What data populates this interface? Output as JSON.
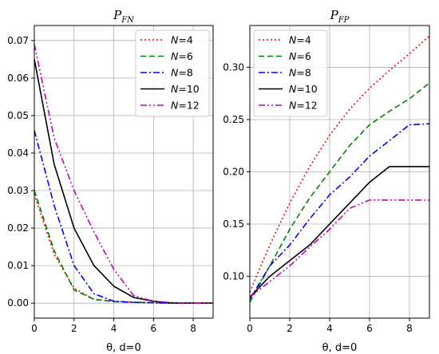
{
  "chart_data": [
    {
      "type": "line",
      "title_main": "P",
      "title_sub": "FN",
      "xlabel": "θ, d=0",
      "xlim": [
        0,
        9
      ],
      "ylim": [
        -0.004,
        0.074
      ],
      "xticks": [
        0,
        2,
        4,
        6,
        8
      ],
      "yticks": [
        0.0,
        0.01,
        0.02,
        0.03,
        0.04,
        0.05,
        0.06,
        0.07
      ],
      "ytick_labels": [
        "0.00",
        "0.01",
        "0.02",
        "0.03",
        "0.04",
        "0.05",
        "0.06",
        "0.07"
      ],
      "grid": true,
      "legend_position": "top-right",
      "x": [
        0,
        1,
        2,
        3,
        4,
        5,
        6,
        7,
        8,
        9
      ],
      "series": [
        {
          "name": "N=4",
          "legend_label": "=4",
          "color": "#ff0000",
          "dash": "2,3",
          "values": [
            0.029,
            0.013,
            0.004,
            0.001,
            0.0005,
            0.0002,
            0.0001,
            0.0,
            0.0,
            0.0
          ]
        },
        {
          "name": "N=6",
          "legend_label": "=6",
          "color": "#008000",
          "dash": "7,4",
          "values": [
            0.03,
            0.014,
            0.0035,
            0.001,
            0.0004,
            0.0002,
            0.0001,
            0.0,
            0.0,
            0.0
          ]
        },
        {
          "name": "N=8",
          "legend_label": "=8",
          "color": "#0000ff",
          "dash": "8,3,2,3",
          "values": [
            0.046,
            0.026,
            0.01,
            0.0025,
            0.0005,
            0.0002,
            0.0001,
            0.0,
            0.0,
            0.0
          ]
        },
        {
          "name": "N=10",
          "legend_label": "=10",
          "color": "#000000",
          "dash": "",
          "values": [
            0.065,
            0.037,
            0.02,
            0.01,
            0.0045,
            0.0015,
            0.0005,
            0.0,
            0.0,
            0.0
          ]
        },
        {
          "name": "N=12",
          "legend_label": "=12",
          "color": "#bf00bf",
          "dash": "8,3,2,3,2,3",
          "values": [
            0.069,
            0.044,
            0.03,
            0.019,
            0.009,
            0.002,
            0.0005,
            0.0001,
            0.0,
            0.0
          ]
        }
      ]
    },
    {
      "type": "line",
      "title_main": "P",
      "title_sub": "FP",
      "xlabel": "θ, d=0",
      "xlim": [
        0,
        9
      ],
      "ylim": [
        0.06,
        0.34
      ],
      "xticks": [
        0,
        2,
        4,
        6,
        8
      ],
      "yticks": [
        0.1,
        0.15,
        0.2,
        0.25,
        0.3
      ],
      "ytick_labels": [
        "0.10",
        "0.15",
        "0.20",
        "0.25",
        "0.30"
      ],
      "grid": true,
      "legend_position": "top-left",
      "x": [
        0,
        1,
        2,
        3,
        4,
        5,
        6,
        7,
        8,
        9
      ],
      "series": [
        {
          "name": "N=4",
          "legend_label": "=4",
          "color": "#ff0000",
          "dash": "2,3",
          "values": [
            0.085,
            0.13,
            0.17,
            0.205,
            0.235,
            0.26,
            0.28,
            0.297,
            0.313,
            0.33
          ]
        },
        {
          "name": "N=6",
          "legend_label": "=6",
          "color": "#008000",
          "dash": "7,4",
          "values": [
            0.075,
            0.11,
            0.145,
            0.175,
            0.2,
            0.225,
            0.245,
            0.258,
            0.27,
            0.285
          ]
        },
        {
          "name": "N=8",
          "legend_label": "=8",
          "color": "#0000ff",
          "dash": "8,3,2,3",
          "values": [
            0.078,
            0.11,
            0.13,
            0.155,
            0.178,
            0.195,
            0.215,
            0.23,
            0.245,
            0.246
          ]
        },
        {
          "name": "N=10",
          "legend_label": "=10",
          "color": "#000000",
          "dash": "",
          "values": [
            0.08,
            0.1,
            0.115,
            0.13,
            0.15,
            0.17,
            0.19,
            0.205,
            0.205,
            0.205
          ]
        },
        {
          "name": "N=12",
          "legend_label": "=12",
          "color": "#bf00bf",
          "dash": "8,3,2,3,2,3",
          "values": [
            0.08,
            0.095,
            0.11,
            0.128,
            0.145,
            0.165,
            0.173,
            0.173,
            0.173,
            0.173
          ]
        }
      ]
    }
  ]
}
